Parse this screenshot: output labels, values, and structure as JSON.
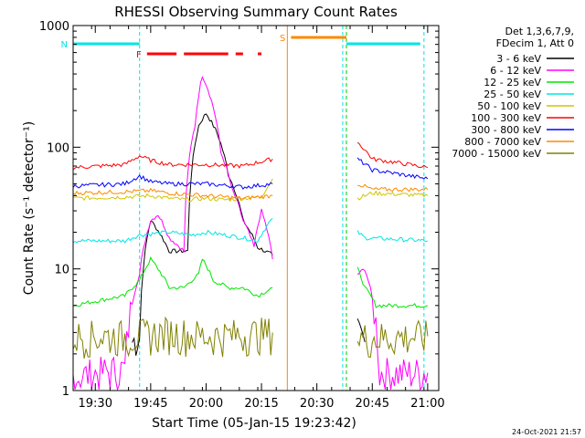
{
  "chart_data": {
    "type": "line",
    "title": "RHESSI Observing Summary Count Rates",
    "xlabel": "Start Time (05-Jan-15 19:23:42)",
    "ylabel": "Count Rate (s⁻¹ detector⁻¹)",
    "y_scale": "log",
    "ylim": [
      1,
      1000
    ],
    "x_range_minutes": [
      "19:24",
      "21:03"
    ],
    "x_ticks": [
      "19:30",
      "19:45",
      "20:00",
      "20:15",
      "20:30",
      "20:45",
      "21:00"
    ],
    "y_ticks": [
      "1",
      "10",
      "100",
      "1000"
    ],
    "legend_header": [
      "Det 1,3,6,7,9,",
      "FDecim 1, Att 0"
    ],
    "legend_position": "top-right",
    "footer_date": "24-Oct-2021 21:57",
    "flags": [
      {
        "label": "N",
        "color": "#00e5e5",
        "segments": [
          [
            "19:24",
            "19:42"
          ],
          [
            "20:38",
            "20:58"
          ]
        ]
      },
      {
        "label": "F",
        "color": "#ff0000",
        "segments": [
          [
            "19:44",
            "19:52"
          ],
          [
            "19:54",
            "20:06"
          ],
          [
            "20:08",
            "20:10"
          ],
          [
            "20:14",
            "20:15"
          ]
        ]
      },
      {
        "label": "S",
        "color": "#ff8800",
        "segments": [
          [
            "20:23",
            "20:38"
          ]
        ]
      }
    ],
    "vertical_lines": [
      {
        "time": "19:42",
        "color": "#00e5e5",
        "style": "dashed"
      },
      {
        "time": "20:22",
        "color": "#ff8800",
        "style": "solid"
      },
      {
        "time": "20:37",
        "color": "#00e5e5",
        "style": "dashed"
      },
      {
        "time": "20:38",
        "color": "#00cc00",
        "style": "dashed"
      },
      {
        "time": "20:59",
        "color": "#00e5e5",
        "style": "dashed"
      }
    ],
    "gap": [
      "20:18",
      "20:41"
    ],
    "series": [
      {
        "name": "3 - 6 keV",
        "color": "#000000",
        "x": [
          "19:40",
          "19:42",
          "19:45",
          "19:50",
          "19:55",
          "19:58",
          "20:00",
          "20:03",
          "20:06",
          "20:10",
          "20:14",
          "20:18",
          "20:41",
          "20:43",
          "20:46"
        ],
        "y": [
          2.5,
          2.8,
          25,
          14,
          14,
          150,
          190,
          130,
          60,
          25,
          15,
          13,
          3,
          2.5,
          null
        ]
      },
      {
        "name": "6 - 12 keV",
        "color": "#ff00ff",
        "x": [
          "19:24",
          "19:38",
          "19:42",
          "19:45",
          "19:47",
          "19:50",
          "19:54",
          "19:57",
          "19:59",
          "20:01",
          "20:04",
          "20:07",
          "20:10",
          "20:13",
          "20:15",
          "20:18",
          "20:41",
          "20:43",
          "20:47",
          "21:00"
        ],
        "y": [
          1.3,
          1.5,
          9,
          25,
          28,
          18,
          14,
          150,
          390,
          270,
          90,
          45,
          25,
          15,
          30,
          12,
          9,
          10,
          1.4,
          1.4
        ]
      },
      {
        "name": "12 - 25 keV",
        "color": "#00e600",
        "x": [
          "19:24",
          "19:38",
          "19:42",
          "19:45",
          "19:50",
          "19:54",
          "19:58",
          "19:59",
          "20:02",
          "20:06",
          "20:10",
          "20:14",
          "20:18",
          "20:41",
          "20:43",
          "20:46",
          "21:00"
        ],
        "y": [
          5,
          6,
          8,
          12,
          7,
          7,
          9,
          12,
          8,
          7,
          7,
          6,
          7,
          10,
          7,
          5,
          5
        ]
      },
      {
        "name": "25 - 50 keV",
        "color": "#00e5e5",
        "x": [
          "19:24",
          "19:38",
          "19:42",
          "19:50",
          "19:56",
          "20:00",
          "20:10",
          "20:14",
          "20:18",
          "20:41",
          "20:43",
          "21:00"
        ],
        "y": [
          17,
          17,
          19,
          20,
          19,
          20,
          18,
          17,
          26,
          20,
          18,
          17
        ]
      },
      {
        "name": "50 - 100 keV",
        "color": "#d4c400",
        "x": [
          "19:24",
          "19:38",
          "19:45",
          "19:50",
          "19:55",
          "20:00",
          "20:05",
          "20:10",
          "20:15",
          "20:18",
          "20:41",
          "20:45",
          "21:00"
        ],
        "y": [
          38,
          39,
          40,
          38,
          37,
          38,
          37,
          38,
          39,
          55,
          38,
          42,
          40
        ]
      },
      {
        "name": "100 - 300 keV",
        "color": "#ff0000",
        "x": [
          "19:24",
          "19:38",
          "19:42",
          "19:45",
          "19:50",
          "20:00",
          "20:10",
          "20:18",
          "20:41",
          "20:45",
          "21:00"
        ],
        "y": [
          68,
          72,
          85,
          78,
          72,
          72,
          70,
          80,
          110,
          80,
          68
        ]
      },
      {
        "name": "300 - 800 keV",
        "color": "#0000ff",
        "x": [
          "19:24",
          "19:38",
          "19:42",
          "19:45",
          "19:50",
          "20:00",
          "20:10",
          "20:18",
          "20:41",
          "20:45",
          "21:00"
        ],
        "y": [
          48,
          50,
          58,
          52,
          50,
          50,
          47,
          50,
          80,
          65,
          55
        ]
      },
      {
        "name": "800 - 7000 keV",
        "color": "#ff8800",
        "x": [
          "19:24",
          "19:38",
          "19:45",
          "19:50",
          "20:00",
          "20:10",
          "20:18",
          "20:41",
          "20:45",
          "21:00"
        ],
        "y": [
          42,
          43,
          44,
          42,
          40,
          38,
          40,
          50,
          45,
          45
        ]
      },
      {
        "name": "7000 - 15000 keV",
        "color": "#808000",
        "x": [
          "19:24",
          "19:38",
          "19:45",
          "19:50",
          "20:00",
          "20:10",
          "20:18",
          "20:41",
          "21:00"
        ],
        "y": [
          2.8,
          2.8,
          2.9,
          3.0,
          2.8,
          2.9,
          3.0,
          2.7,
          2.8
        ]
      }
    ]
  }
}
